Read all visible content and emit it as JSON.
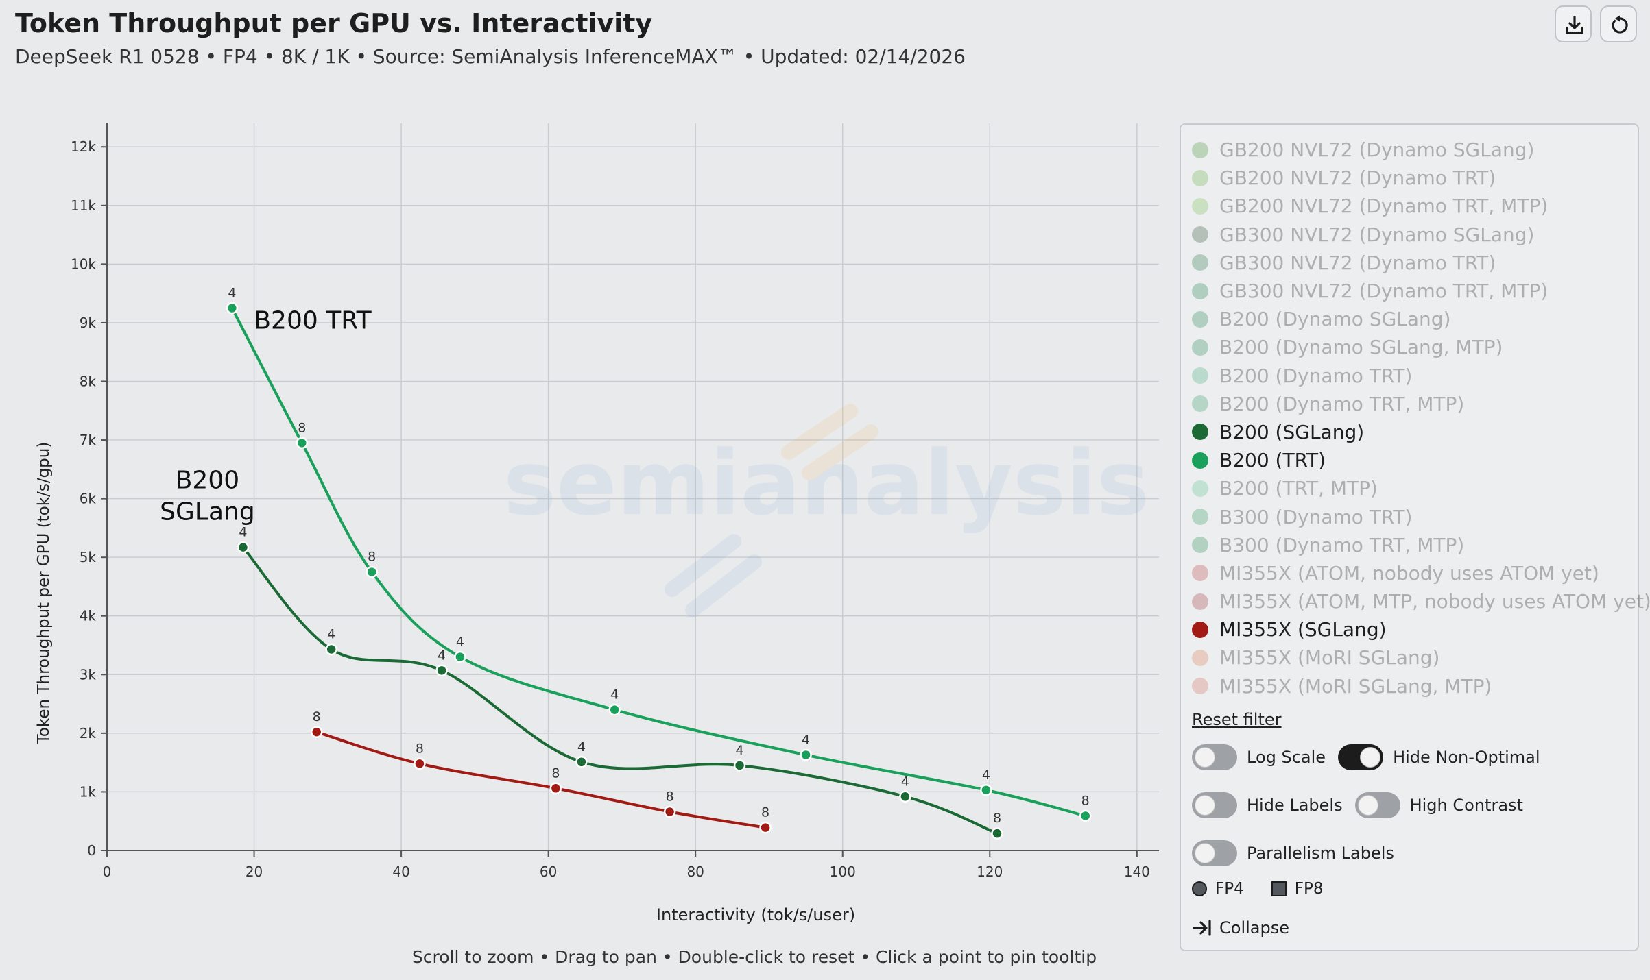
{
  "header": {
    "title": "Token Throughput per GPU vs. Interactivity",
    "subtitle": "DeepSeek R1 0528 • FP4 • 8K / 1K • Source: SemiAnalysis InferenceMAX™ • Updated: 02/14/2026",
    "download_icon": "download-icon",
    "reset_icon": "reset-icon"
  },
  "hint": "Scroll to zoom • Drag to pan • Double-click to reset • Click a point to pin tooltip",
  "watermark": "semianalysis",
  "legend": {
    "items": [
      {
        "label": "GB200 NVL72 (Dynamo SGLang)",
        "color": "#4e9a3c",
        "active": false
      },
      {
        "label": "GB200 NVL72 (Dynamo TRT)",
        "color": "#6fb84e",
        "active": false
      },
      {
        "label": "GB200 NVL72 (Dynamo TRT, MTP)",
        "color": "#7fc456",
        "active": false
      },
      {
        "label": "GB300 NVL72 (Dynamo SGLang)",
        "color": "#3a5a3a",
        "active": false
      },
      {
        "label": "GB300 NVL72 (Dynamo TRT)",
        "color": "#2f7d4c",
        "active": false
      },
      {
        "label": "GB300 NVL72 (Dynamo TRT, MTP)",
        "color": "#2a8550",
        "active": false
      },
      {
        "label": "B200 (Dynamo SGLang)",
        "color": "#2a8a55",
        "active": false
      },
      {
        "label": "B200 (Dynamo SGLang, MTP)",
        "color": "#2b8d58",
        "active": false
      },
      {
        "label": "B200 (Dynamo TRT)",
        "color": "#4ab07a",
        "active": false
      },
      {
        "label": "B200 (Dynamo TRT, MTP)",
        "color": "#39a06a",
        "active": false
      },
      {
        "label": "B200 (SGLang)",
        "color": "#1b6a35",
        "active": true
      },
      {
        "label": "B200 (TRT)",
        "color": "#19a05a",
        "active": true
      },
      {
        "label": "B200 (TRT, MTP)",
        "color": "#5fc68f",
        "active": false
      },
      {
        "label": "B300 (Dynamo TRT)",
        "color": "#3aa066",
        "active": false
      },
      {
        "label": "B300 (Dynamo TRT, MTP)",
        "color": "#2f8f58",
        "active": false
      },
      {
        "label": "MI355X (ATOM, nobody uses ATOM yet)",
        "color": "#c04848",
        "active": false
      },
      {
        "label": "MI355X (ATOM, MTP, nobody uses ATOM yet)",
        "color": "#a84040",
        "active": false
      },
      {
        "label": "MI355X (SGLang)",
        "color": "#a11a13",
        "active": true
      },
      {
        "label": "MI355X (MoRI SGLang)",
        "color": "#e0805a",
        "active": false
      },
      {
        "label": "MI355X (MoRI SGLang, MTP)",
        "color": "#d87060",
        "active": false
      }
    ],
    "reset_filter": "Reset filter",
    "toggles": {
      "log_scale": {
        "label": "Log Scale",
        "on": false
      },
      "hide_non_optimal": {
        "label": "Hide Non-Optimal",
        "on": true
      },
      "hide_labels": {
        "label": "Hide Labels",
        "on": false
      },
      "high_contrast": {
        "label": "High Contrast",
        "on": false
      },
      "parallelism_labels": {
        "label": "Parallelism Labels",
        "on": false
      }
    },
    "precision": {
      "fp4": "FP4",
      "fp8": "FP8"
    },
    "collapse": "Collapse"
  },
  "chart_data": {
    "type": "line",
    "title": "Token Throughput per GPU vs. Interactivity",
    "xlabel": "Interactivity (tok/s/user)",
    "ylabel": "Token Throughput per GPU (tok/s/gpu)",
    "xlim": [
      0,
      143
    ],
    "ylim": [
      0,
      12400
    ],
    "x_ticks": [
      0,
      20,
      40,
      60,
      80,
      100,
      120,
      140
    ],
    "x_tick_labels": [
      "0",
      "20",
      "40",
      "60",
      "80",
      "100",
      "120",
      "140"
    ],
    "y_ticks": [
      0,
      1000,
      2000,
      3000,
      4000,
      5000,
      6000,
      7000,
      8000,
      9000,
      10000,
      11000,
      12000
    ],
    "y_tick_labels": [
      "0",
      "1k",
      "2k",
      "3k",
      "4k",
      "5k",
      "6k",
      "7k",
      "8k",
      "9k",
      "10k",
      "11k",
      "12k"
    ],
    "grid": true,
    "series": [
      {
        "name": "B200 (TRT)",
        "color": "#19a05a",
        "annotation": "B200 TRT",
        "points": [
          {
            "x": 17,
            "y": 9250,
            "label": "4"
          },
          {
            "x": 26.5,
            "y": 6950,
            "label": "8"
          },
          {
            "x": 36,
            "y": 4750,
            "label": "8"
          },
          {
            "x": 48,
            "y": 3300,
            "label": "4"
          },
          {
            "x": 69,
            "y": 2400,
            "label": "4"
          },
          {
            "x": 95,
            "y": 1630,
            "label": "4"
          },
          {
            "x": 119.5,
            "y": 1030,
            "label": "4"
          },
          {
            "x": 133,
            "y": 590,
            "label": "8"
          }
        ]
      },
      {
        "name": "B200 (SGLang)",
        "color": "#1b6a35",
        "annotation": "B200\nSGLang",
        "points": [
          {
            "x": 18.5,
            "y": 5170,
            "label": "4"
          },
          {
            "x": 30.5,
            "y": 3430,
            "label": "4"
          },
          {
            "x": 45.5,
            "y": 3070,
            "label": "4"
          },
          {
            "x": 64.5,
            "y": 1510,
            "label": "4"
          },
          {
            "x": 86,
            "y": 1450,
            "label": "4"
          },
          {
            "x": 108.5,
            "y": 920,
            "label": "4"
          },
          {
            "x": 121,
            "y": 290,
            "label": "8"
          }
        ]
      },
      {
        "name": "MI355X (SGLang)",
        "color": "#a11a13",
        "points": [
          {
            "x": 28.5,
            "y": 2020,
            "label": "8"
          },
          {
            "x": 42.5,
            "y": 1480,
            "label": "8"
          },
          {
            "x": 61,
            "y": 1060,
            "label": "8"
          },
          {
            "x": 76.5,
            "y": 660,
            "label": "8"
          },
          {
            "x": 89.5,
            "y": 390,
            "label": "8"
          }
        ]
      }
    ]
  }
}
